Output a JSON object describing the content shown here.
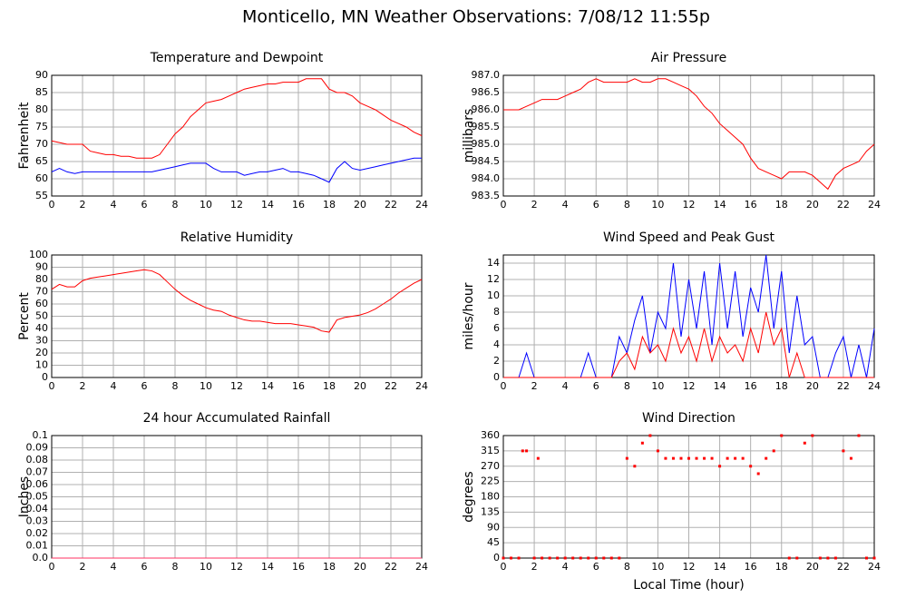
{
  "title": "Monticello, MN Weather Observations: 7/08/12 11:55p",
  "chart_data": [
    {
      "type": "line",
      "title": "Temperature and Dewpoint",
      "ylabel": "Fahrenheit",
      "x": [
        0,
        0.5,
        1,
        1.5,
        2,
        2.5,
        3,
        3.5,
        4,
        4.5,
        5,
        5.5,
        6,
        6.5,
        7,
        7.5,
        8,
        8.5,
        9,
        9.5,
        10,
        10.5,
        11,
        11.5,
        12,
        12.5,
        13,
        13.5,
        14,
        14.5,
        15,
        15.5,
        16,
        16.5,
        17,
        17.5,
        18,
        18.5,
        19,
        19.5,
        20,
        20.5,
        21,
        21.5,
        22,
        22.5,
        23,
        23.5,
        24
      ],
      "series": [
        {
          "color": "#ff0000",
          "values": [
            71,
            70.5,
            70,
            70,
            70,
            68,
            67.5,
            67,
            67,
            66.5,
            66.5,
            66,
            66,
            66,
            67,
            70,
            73,
            75,
            78,
            80,
            82,
            82.5,
            83,
            84,
            85,
            86,
            86.5,
            87,
            87.5,
            87.5,
            88,
            88,
            88,
            89,
            89,
            89,
            86,
            85,
            85,
            84,
            82,
            81,
            80,
            78.5,
            77,
            76,
            75,
            73.5,
            72.5
          ]
        },
        {
          "color": "#0000ff",
          "values": [
            62,
            63,
            62,
            61.5,
            62,
            62,
            62,
            62,
            62,
            62,
            62,
            62,
            62,
            62,
            62.5,
            63,
            63.5,
            64,
            64.5,
            64.5,
            64.5,
            63,
            62,
            62,
            62,
            61,
            61.5,
            62,
            62,
            62.5,
            63,
            62,
            62,
            61.5,
            61,
            60,
            59,
            63,
            65,
            63,
            62.5,
            63,
            63.5,
            64,
            64.5,
            65,
            65.5,
            66,
            66
          ]
        }
      ],
      "xlim": [
        0,
        24
      ],
      "xticks": [
        0,
        2,
        4,
        6,
        8,
        10,
        12,
        14,
        16,
        18,
        20,
        22,
        24
      ],
      "ylim": [
        55,
        90
      ],
      "yticks": [
        55,
        60,
        65,
        70,
        75,
        80,
        85,
        90
      ],
      "grid": true
    },
    {
      "type": "line",
      "title": "Air Pressure",
      "ylabel": "millibars",
      "x": [
        0,
        0.5,
        1,
        1.5,
        2,
        2.5,
        3,
        3.5,
        4,
        4.5,
        5,
        5.5,
        6,
        6.5,
        7,
        7.5,
        8,
        8.5,
        9,
        9.5,
        10,
        10.5,
        11,
        11.5,
        12,
        12.5,
        13,
        13.5,
        14,
        14.5,
        15,
        15.5,
        16,
        16.5,
        17,
        17.5,
        18,
        18.5,
        19,
        19.5,
        20,
        20.5,
        21,
        21.5,
        22,
        22.5,
        23,
        23.5,
        24
      ],
      "series": [
        {
          "color": "#ff0000",
          "values": [
            986.0,
            986.0,
            986.0,
            986.1,
            986.2,
            986.3,
            986.3,
            986.3,
            986.4,
            986.5,
            986.6,
            986.8,
            986.9,
            986.8,
            986.8,
            986.8,
            986.8,
            986.9,
            986.8,
            986.8,
            986.9,
            986.9,
            986.8,
            986.7,
            986.6,
            986.4,
            986.1,
            985.9,
            985.6,
            985.4,
            985.2,
            985.0,
            984.6,
            984.3,
            984.2,
            984.1,
            984.0,
            984.2,
            984.2,
            984.2,
            984.1,
            983.9,
            983.7,
            984.1,
            984.3,
            984.4,
            984.5,
            984.8,
            985.0
          ]
        }
      ],
      "xlim": [
        0,
        24
      ],
      "xticks": [
        0,
        2,
        4,
        6,
        8,
        10,
        12,
        14,
        16,
        18,
        20,
        22,
        24
      ],
      "ylim": [
        983.5,
        987.0
      ],
      "yticks": [
        983.5,
        {
          "value": 984,
          "label": "984.0"
        },
        984.5,
        {
          "value": 985,
          "label": "985.0"
        },
        985.5,
        {
          "value": 986,
          "label": "986.0"
        },
        986.5,
        {
          "value": 987,
          "label": "987.0"
        }
      ],
      "grid": true
    },
    {
      "type": "line",
      "title": "Relative Humidity",
      "ylabel": "Percent",
      "x": [
        0,
        0.5,
        1,
        1.5,
        2,
        2.5,
        3,
        3.5,
        4,
        4.5,
        5,
        5.5,
        6,
        6.5,
        7,
        7.5,
        8,
        8.5,
        9,
        9.5,
        10,
        10.5,
        11,
        11.5,
        12,
        12.5,
        13,
        13.5,
        14,
        14.5,
        15,
        15.5,
        16,
        16.5,
        17,
        17.5,
        18,
        18.5,
        19,
        19.5,
        20,
        20.5,
        21,
        21.5,
        22,
        22.5,
        23,
        23.5,
        24
      ],
      "series": [
        {
          "color": "#ff0000",
          "values": [
            72,
            76,
            74,
            74,
            79,
            81,
            82,
            83,
            84,
            85,
            86,
            87,
            88,
            87,
            84,
            78,
            72,
            67,
            63,
            60,
            57,
            55,
            54,
            51,
            49,
            47,
            46,
            46,
            45,
            44,
            44,
            44,
            43,
            42,
            41,
            38,
            37,
            47,
            49,
            50,
            51,
            53,
            56,
            60,
            64,
            69,
            73,
            77,
            80
          ]
        }
      ],
      "xlim": [
        0,
        24
      ],
      "xticks": [
        0,
        2,
        4,
        6,
        8,
        10,
        12,
        14,
        16,
        18,
        20,
        22,
        24
      ],
      "ylim": [
        0,
        100
      ],
      "yticks": [
        0,
        10,
        20,
        30,
        40,
        50,
        60,
        70,
        80,
        90,
        100
      ],
      "grid": true
    },
    {
      "type": "line",
      "title": "Wind Speed and Peak Gust",
      "ylabel": "miles/hour",
      "x": [
        0,
        0.5,
        1,
        1.5,
        2,
        2.5,
        3,
        3.5,
        4,
        4.5,
        5,
        5.5,
        6,
        6.5,
        7,
        7.5,
        8,
        8.5,
        9,
        9.5,
        10,
        10.5,
        11,
        11.5,
        12,
        12.5,
        13,
        13.5,
        14,
        14.5,
        15,
        15.5,
        16,
        16.5,
        17,
        17.5,
        18,
        18.5,
        19,
        19.5,
        20,
        20.5,
        21,
        21.5,
        22,
        22.5,
        23,
        23.5,
        24
      ],
      "series": [
        {
          "color": "#0000ff",
          "values": [
            0,
            0,
            0,
            3,
            0,
            0,
            0,
            0,
            0,
            0,
            0,
            3,
            0,
            0,
            0,
            5,
            3,
            7,
            10,
            3,
            8,
            6,
            14,
            5,
            12,
            6,
            13,
            4,
            14,
            6,
            13,
            5,
            11,
            8,
            15,
            6,
            13,
            3,
            10,
            4,
            5,
            0,
            0,
            3,
            5,
            0,
            4,
            0,
            6
          ]
        },
        {
          "color": "#ff0000",
          "values": [
            0,
            0,
            0,
            0,
            0,
            0,
            0,
            0,
            0,
            0,
            0,
            0,
            0,
            0,
            0,
            2,
            3,
            1,
            5,
            3,
            4,
            2,
            6,
            3,
            5,
            2,
            6,
            2,
            5,
            3,
            4,
            2,
            6,
            3,
            8,
            4,
            6,
            0,
            3,
            0,
            0,
            0,
            0,
            0,
            0,
            0,
            0,
            0,
            0
          ]
        }
      ],
      "xlim": [
        0,
        24
      ],
      "xticks": [
        0,
        2,
        4,
        6,
        8,
        10,
        12,
        14,
        16,
        18,
        20,
        22,
        24
      ],
      "ylim": [
        0,
        15
      ],
      "yticks": [
        0,
        2,
        4,
        6,
        8,
        10,
        12,
        14
      ],
      "grid": true
    },
    {
      "type": "line",
      "title": "24 hour Accumulated Rainfall",
      "ylabel": "Inches",
      "x": [
        0,
        24
      ],
      "series": [
        {
          "color": "#ff3060",
          "values": [
            0,
            0
          ]
        }
      ],
      "xlim": [
        0,
        24
      ],
      "xticks": [
        0,
        2,
        4,
        6,
        8,
        10,
        12,
        14,
        16,
        18,
        20,
        22,
        24
      ],
      "ylim": [
        0,
        0.1
      ],
      "yticks": [
        {
          "value": 0,
          "label": "0.0"
        },
        0.01,
        0.02,
        0.03,
        0.04,
        0.05,
        0.06,
        0.07,
        0.08,
        0.09,
        0.1
      ],
      "grid": true
    },
    {
      "type": "scatter",
      "title": "Wind Direction",
      "ylabel": "degrees",
      "xlabel": "Local Time (hour)",
      "x": [
        0,
        0.5,
        1,
        1.25,
        1.5,
        2,
        2.25,
        2.5,
        3,
        3.5,
        4,
        4.5,
        5,
        5.5,
        6,
        6.5,
        7,
        7.5,
        8,
        8.5,
        9,
        9.5,
        10,
        10.5,
        11,
        11.5,
        12,
        12.5,
        13,
        13.5,
        14,
        14.5,
        15,
        15.5,
        16,
        16.5,
        17,
        17.5,
        18,
        18.5,
        19,
        19.5,
        20,
        20.5,
        21,
        21.5,
        22,
        22.5,
        23,
        23.5,
        24
      ],
      "series": [
        {
          "color": "#ff0000",
          "values": [
            0,
            0,
            0,
            315,
            315,
            0,
            293,
            0,
            0,
            0,
            0,
            0,
            0,
            0,
            0,
            0,
            0,
            0,
            293,
            270,
            338,
            360,
            315,
            293,
            293,
            293,
            293,
            293,
            293,
            293,
            270,
            293,
            293,
            293,
            270,
            248,
            293,
            315,
            360,
            0,
            0,
            338,
            360,
            0,
            0,
            0,
            315,
            293,
            360,
            0,
            0
          ]
        }
      ],
      "xlim": [
        0,
        24
      ],
      "xticks": [
        0,
        2,
        4,
        6,
        8,
        10,
        12,
        14,
        16,
        18,
        20,
        22,
        24
      ],
      "ylim": [
        0,
        360
      ],
      "yticks": [
        0,
        45,
        90,
        135,
        180,
        225,
        270,
        315,
        360
      ],
      "grid": true
    }
  ]
}
